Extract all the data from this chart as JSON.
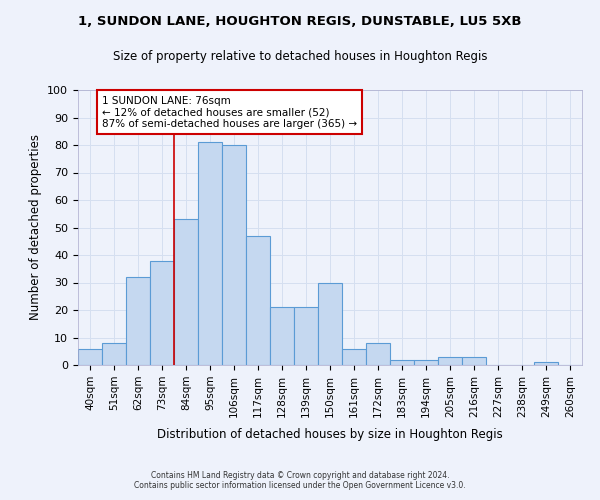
{
  "title1": "1, SUNDON LANE, HOUGHTON REGIS, DUNSTABLE, LU5 5XB",
  "title2": "Size of property relative to detached houses in Houghton Regis",
  "xlabel": "Distribution of detached houses by size in Houghton Regis",
  "ylabel": "Number of detached properties",
  "categories": [
    "40sqm",
    "51sqm",
    "62sqm",
    "73sqm",
    "84sqm",
    "95sqm",
    "106sqm",
    "117sqm",
    "128sqm",
    "139sqm",
    "150sqm",
    "161sqm",
    "172sqm",
    "183sqm",
    "194sqm",
    "205sqm",
    "216sqm",
    "227sqm",
    "238sqm",
    "249sqm",
    "260sqm"
  ],
  "values": [
    6,
    8,
    32,
    38,
    53,
    81,
    80,
    47,
    21,
    21,
    30,
    6,
    8,
    2,
    2,
    3,
    3,
    0,
    0,
    1,
    0
  ],
  "bar_color": "#c5d8f0",
  "bar_edge_color": "#5b9bd5",
  "annotation_text_line1": "1 SUNDON LANE: 76sqm",
  "annotation_text_line2": "← 12% of detached houses are smaller (52)",
  "annotation_text_line3": "87% of semi-detached houses are larger (365) →",
  "annotation_box_color": "#ffffff",
  "annotation_box_edge": "#cc0000",
  "red_line_color": "#cc0000",
  "grid_color": "#d5dff0",
  "background_color": "#eef2fb",
  "ylim": [
    0,
    100
  ],
  "yticks": [
    0,
    10,
    20,
    30,
    40,
    50,
    60,
    70,
    80,
    90,
    100
  ],
  "footer1": "Contains HM Land Registry data © Crown copyright and database right 2024.",
  "footer2": "Contains public sector information licensed under the Open Government Licence v3.0."
}
